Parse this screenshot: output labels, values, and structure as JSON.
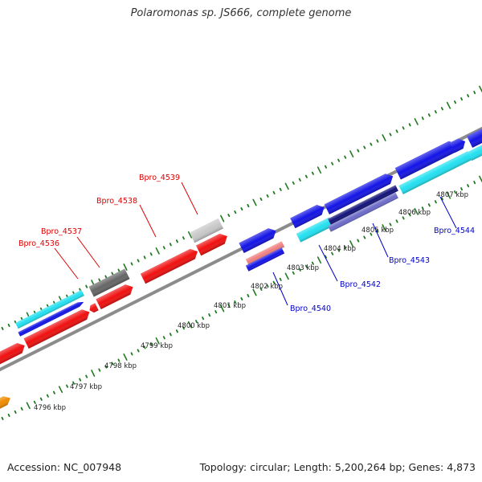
{
  "title": "Polaromonas sp. JS666, complete genome",
  "footer": {
    "accession": "Accession: NC_007948",
    "summary": "Topology: circular; Length: 5,200,264 bp; Genes: 4,873"
  },
  "colors": {
    "backbone": "#8c8c8c",
    "tick": "#1f7a1f",
    "red": "#f01010",
    "blue": "#1414e6",
    "cyan": "#22e0f0",
    "navy": "#12127a",
    "slate": "#6c6cc8",
    "pink": "#f08080",
    "gray_dark": "#666666",
    "gray_light": "#c8c8c8",
    "orange": "#f08c00",
    "label_red": "#e00000",
    "label_blue": "#0000c8"
  },
  "kbp_labels": [
    "4796 kbp",
    "4797 kbp",
    "4798 kbp",
    "4799 kbp",
    "4800 kbp",
    "4801 kbp",
    "4802 kbp",
    "4803 kbp",
    "4804 kbp",
    "4805 kbp",
    "4806 kbp",
    "4807 kbp"
  ],
  "gene_labels": {
    "bpro_4536": "Bpro_4536",
    "bpro_4537": "Bpro_4537",
    "bpro_4538": "Bpro_4538",
    "bpro_4539": "Bpro_4539",
    "bpro_4540": "Bpro_4540",
    "bpro_4542": "Bpro_4542",
    "bpro_4543": "Bpro_4543",
    "bpro_4544": "Bpro_4544"
  }
}
